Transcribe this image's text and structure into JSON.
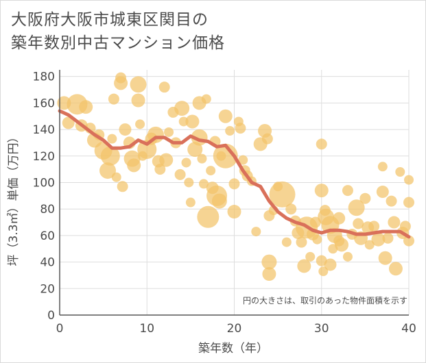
{
  "chart_data": {
    "type": "scatter",
    "title_line1": "大阪府大阪市城東区関目の",
    "title_line2": "築年数別中古マンション価格",
    "xlabel": "築年数（年）",
    "ylabel": "坪（3.3㎡）単価（万円）",
    "note": "円の大きさは、取引のあった物件面積を示す",
    "xlim": [
      0,
      40
    ],
    "ylim": [
      0,
      185
    ],
    "xticks": [
      "0",
      "10",
      "20",
      "30",
      "40"
    ],
    "yticks": [
      "0",
      "20",
      "40",
      "60",
      "80",
      "100",
      "120",
      "140",
      "160",
      "180"
    ],
    "grid": true,
    "colors": {
      "bubble": "#f2c46a",
      "trend": "#d9705a",
      "grid": "#dddddd",
      "axis": "#555555"
    },
    "trend": {
      "x": [
        0,
        1,
        2,
        3,
        4,
        5,
        6,
        7,
        8,
        9,
        10,
        11,
        12,
        13,
        14,
        15,
        16,
        17,
        18,
        19,
        20,
        21,
        22,
        23,
        24,
        25,
        26,
        27,
        28,
        29,
        30,
        31,
        32,
        33,
        34,
        35,
        36,
        37,
        38,
        39,
        40
      ],
      "y": [
        154,
        151,
        146,
        141,
        136,
        132,
        126,
        126,
        127,
        132,
        129,
        134,
        134,
        130,
        130,
        135,
        132,
        131,
        127,
        128,
        120,
        109,
        100,
        97,
        86,
        78,
        73,
        70,
        68,
        64,
        62,
        64,
        64,
        63,
        61,
        61,
        62,
        63,
        63,
        63,
        59
      ]
    },
    "bubbles": [
      {
        "x": 0.5,
        "y": 160,
        "r": 10
      },
      {
        "x": 1,
        "y": 145,
        "r": 9
      },
      {
        "x": 2,
        "y": 159,
        "r": 15
      },
      {
        "x": 2.5,
        "y": 143,
        "r": 9
      },
      {
        "x": 3,
        "y": 157,
        "r": 10
      },
      {
        "x": 3.5,
        "y": 141,
        "r": 8
      },
      {
        "x": 4,
        "y": 132,
        "r": 11
      },
      {
        "x": 4.5,
        "y": 136,
        "r": 8
      },
      {
        "x": 5,
        "y": 124,
        "r": 13
      },
      {
        "x": 5.5,
        "y": 109,
        "r": 12
      },
      {
        "x": 5.8,
        "y": 120,
        "r": 14
      },
      {
        "x": 6,
        "y": 133,
        "r": 7
      },
      {
        "x": 6.2,
        "y": 163,
        "r": 8
      },
      {
        "x": 6.5,
        "y": 104,
        "r": 7
      },
      {
        "x": 7,
        "y": 179,
        "r": 8
      },
      {
        "x": 7,
        "y": 175,
        "r": 10
      },
      {
        "x": 7.2,
        "y": 97,
        "r": 8
      },
      {
        "x": 7.5,
        "y": 140,
        "r": 9
      },
      {
        "x": 8,
        "y": 130,
        "r": 9
      },
      {
        "x": 8.3,
        "y": 118,
        "r": 12
      },
      {
        "x": 8.5,
        "y": 113,
        "r": 10
      },
      {
        "x": 9,
        "y": 174,
        "r": 12
      },
      {
        "x": 9,
        "y": 162,
        "r": 10
      },
      {
        "x": 9.2,
        "y": 144,
        "r": 7
      },
      {
        "x": 9.5,
        "y": 120,
        "r": 7
      },
      {
        "x": 10,
        "y": 125,
        "r": 14
      },
      {
        "x": 10.5,
        "y": 133,
        "r": 9
      },
      {
        "x": 11,
        "y": 136,
        "r": 12
      },
      {
        "x": 11.3,
        "y": 116,
        "r": 9
      },
      {
        "x": 11.5,
        "y": 110,
        "r": 8
      },
      {
        "x": 12,
        "y": 172,
        "r": 8
      },
      {
        "x": 12.2,
        "y": 117,
        "r": 10
      },
      {
        "x": 12.5,
        "y": 138,
        "r": 7
      },
      {
        "x": 13,
        "y": 153,
        "r": 8
      },
      {
        "x": 13.3,
        "y": 130,
        "r": 8
      },
      {
        "x": 13.8,
        "y": 106,
        "r": 8
      },
      {
        "x": 14,
        "y": 156,
        "r": 11
      },
      {
        "x": 14.2,
        "y": 146,
        "r": 7
      },
      {
        "x": 14.5,
        "y": 115,
        "r": 7
      },
      {
        "x": 14.8,
        "y": 100,
        "r": 7
      },
      {
        "x": 15,
        "y": 85,
        "r": 7
      },
      {
        "x": 15.2,
        "y": 146,
        "r": 10
      },
      {
        "x": 15.5,
        "y": 125,
        "r": 11
      },
      {
        "x": 16,
        "y": 134,
        "r": 12
      },
      {
        "x": 16,
        "y": 160,
        "r": 10
      },
      {
        "x": 16.3,
        "y": 118,
        "r": 7
      },
      {
        "x": 16.5,
        "y": 99,
        "r": 7
      },
      {
        "x": 16.8,
        "y": 163,
        "r": 7
      },
      {
        "x": 17,
        "y": 74,
        "r": 16
      },
      {
        "x": 17.3,
        "y": 109,
        "r": 7
      },
      {
        "x": 17.5,
        "y": 96,
        "r": 9
      },
      {
        "x": 17.8,
        "y": 131,
        "r": 8
      },
      {
        "x": 18,
        "y": 90,
        "r": 15
      },
      {
        "x": 18.3,
        "y": 86,
        "r": 11
      },
      {
        "x": 18.5,
        "y": 120,
        "r": 7
      },
      {
        "x": 19,
        "y": 150,
        "r": 10
      },
      {
        "x": 19,
        "y": 120,
        "r": 18
      },
      {
        "x": 19.5,
        "y": 139,
        "r": 7
      },
      {
        "x": 20,
        "y": 99,
        "r": 8
      },
      {
        "x": 20,
        "y": 78,
        "r": 10
      },
      {
        "x": 20.5,
        "y": 146,
        "r": 7
      },
      {
        "x": 20.7,
        "y": 141,
        "r": 8
      },
      {
        "x": 21,
        "y": 117,
        "r": 7
      },
      {
        "x": 21.2,
        "y": 109,
        "r": 8
      },
      {
        "x": 21.5,
        "y": 105,
        "r": 8
      },
      {
        "x": 22,
        "y": 101,
        "r": 7
      },
      {
        "x": 22.5,
        "y": 63,
        "r": 7
      },
      {
        "x": 23,
        "y": 129,
        "r": 10
      },
      {
        "x": 23.5,
        "y": 139,
        "r": 10
      },
      {
        "x": 23.8,
        "y": 133,
        "r": 8
      },
      {
        "x": 24,
        "y": 75,
        "r": 8
      },
      {
        "x": 24,
        "y": 40,
        "r": 11
      },
      {
        "x": 24,
        "y": 31,
        "r": 10
      },
      {
        "x": 24.5,
        "y": 79,
        "r": 7
      },
      {
        "x": 25,
        "y": 97,
        "r": 7
      },
      {
        "x": 25.5,
        "y": 91,
        "r": 19
      },
      {
        "x": 26,
        "y": 55,
        "r": 7
      },
      {
        "x": 26.5,
        "y": 80,
        "r": 8
      },
      {
        "x": 27,
        "y": 71,
        "r": 8
      },
      {
        "x": 27.3,
        "y": 62,
        "r": 9
      },
      {
        "x": 27.7,
        "y": 55,
        "r": 8
      },
      {
        "x": 28,
        "y": 37,
        "r": 10
      },
      {
        "x": 28.3,
        "y": 66,
        "r": 16
      },
      {
        "x": 28.7,
        "y": 44,
        "r": 7
      },
      {
        "x": 29,
        "y": 61,
        "r": 9
      },
      {
        "x": 29.3,
        "y": 70,
        "r": 8
      },
      {
        "x": 29.5,
        "y": 57,
        "r": 7
      },
      {
        "x": 30,
        "y": 129,
        "r": 8
      },
      {
        "x": 30,
        "y": 94,
        "r": 10
      },
      {
        "x": 30,
        "y": 41,
        "r": 8
      },
      {
        "x": 30.2,
        "y": 33,
        "r": 7
      },
      {
        "x": 30.4,
        "y": 79,
        "r": 8
      },
      {
        "x": 30.5,
        "y": 74,
        "r": 12
      },
      {
        "x": 31,
        "y": 68,
        "r": 13
      },
      {
        "x": 31,
        "y": 38,
        "r": 9
      },
      {
        "x": 31.3,
        "y": 50,
        "r": 7
      },
      {
        "x": 31.5,
        "y": 60,
        "r": 11
      },
      {
        "x": 32,
        "y": 73,
        "r": 9
      },
      {
        "x": 32,
        "y": 56,
        "r": 8
      },
      {
        "x": 32.3,
        "y": 53,
        "r": 10
      },
      {
        "x": 33,
        "y": 94,
        "r": 8
      },
      {
        "x": 33,
        "y": 44,
        "r": 7
      },
      {
        "x": 33.5,
        "y": 61,
        "r": 8
      },
      {
        "x": 34,
        "y": 81,
        "r": 12
      },
      {
        "x": 34.2,
        "y": 69,
        "r": 8
      },
      {
        "x": 34.5,
        "y": 58,
        "r": 10
      },
      {
        "x": 35,
        "y": 88,
        "r": 8
      },
      {
        "x": 35.3,
        "y": 66,
        "r": 9
      },
      {
        "x": 35.5,
        "y": 53,
        "r": 7
      },
      {
        "x": 36,
        "y": 67,
        "r": 8
      },
      {
        "x": 36.5,
        "y": 57,
        "r": 10
      },
      {
        "x": 37,
        "y": 112,
        "r": 7
      },
      {
        "x": 37,
        "y": 93,
        "r": 9
      },
      {
        "x": 37.3,
        "y": 43,
        "r": 10
      },
      {
        "x": 37.6,
        "y": 58,
        "r": 8
      },
      {
        "x": 38,
        "y": 86,
        "r": 8
      },
      {
        "x": 38.3,
        "y": 70,
        "r": 9
      },
      {
        "x": 38.5,
        "y": 35,
        "r": 10
      },
      {
        "x": 39,
        "y": 108,
        "r": 7
      },
      {
        "x": 39.3,
        "y": 62,
        "r": 9
      },
      {
        "x": 39.6,
        "y": 67,
        "r": 8
      },
      {
        "x": 40,
        "y": 102,
        "r": 7
      },
      {
        "x": 40,
        "y": 85,
        "r": 8
      },
      {
        "x": 40,
        "y": 56,
        "r": 8
      }
    ]
  }
}
